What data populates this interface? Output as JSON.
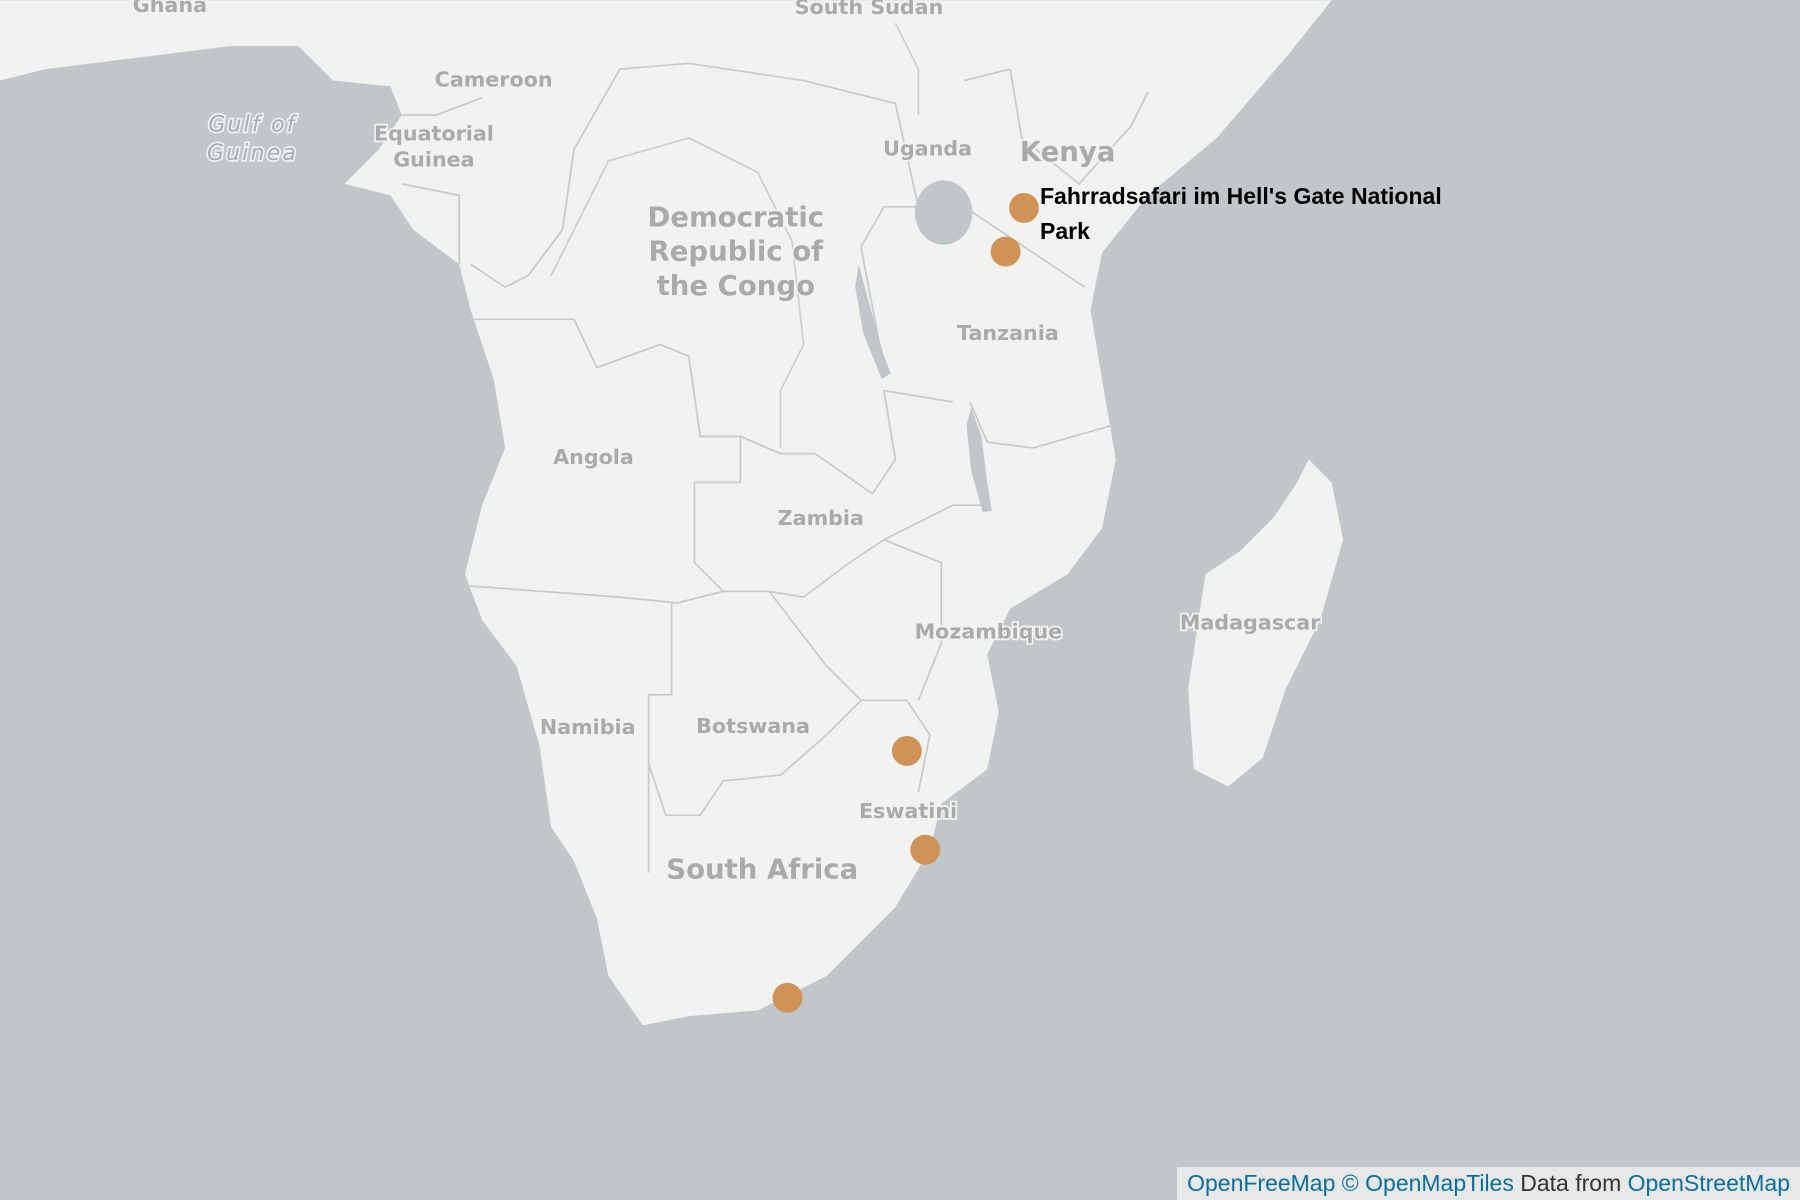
{
  "water_labels": [
    {
      "lines": [
        "Gulf of",
        "Guinea"
      ]
    }
  ],
  "country_labels": [
    {
      "lines": [
        "Ghana"
      ]
    },
    {
      "lines": [
        "South Sudan"
      ]
    },
    {
      "lines": [
        "Cameroon"
      ]
    },
    {
      "lines": [
        "Equatorial",
        "Guinea"
      ]
    },
    {
      "lines": [
        "Uganda"
      ]
    },
    {
      "lines": [
        "Kenya"
      ]
    },
    {
      "lines": [
        "Democratic",
        "Republic of",
        "the Congo"
      ]
    },
    {
      "lines": [
        "Tanzania"
      ]
    },
    {
      "lines": [
        "Angola"
      ]
    },
    {
      "lines": [
        "Zambia"
      ]
    },
    {
      "lines": [
        "Mozambique"
      ]
    },
    {
      "lines": [
        "Madagascar"
      ]
    },
    {
      "lines": [
        "Namibia"
      ]
    },
    {
      "lines": [
        "Botswana"
      ]
    },
    {
      "lines": [
        "Eswatini"
      ]
    },
    {
      "lines": [
        "South Africa"
      ]
    }
  ],
  "popup": {
    "title": "Fahrradsafari im Hell's Gate National Park"
  },
  "attribution": {
    "links": [
      "OpenFreeMap",
      "© OpenMapTiles",
      "OpenStreetMap"
    ],
    "text": "Data from"
  }
}
